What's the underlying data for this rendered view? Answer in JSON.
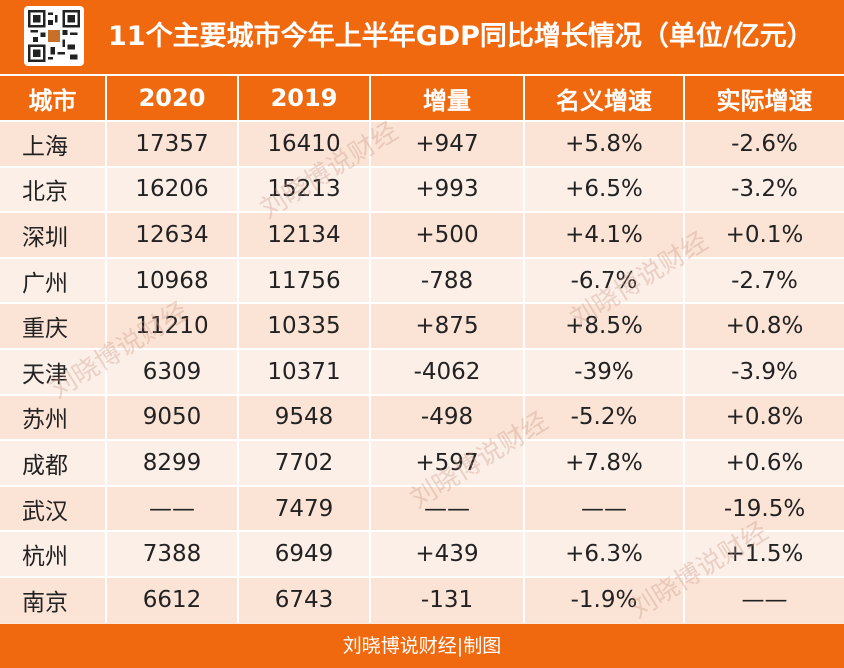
{
  "title": "11个主要城市今年上半年GDP同比增长情况（单位/亿元）",
  "footer": "刘晓博说财经|制图",
  "watermark": "刘晓博说财经",
  "colors": {
    "header": "#f0690f",
    "row_odd": "#fbe4d6",
    "row_even": "#fcefe8"
  },
  "chart_data": {
    "type": "table",
    "title": "11个主要城市今年上半年GDP同比增长情况（单位/亿元）",
    "columns": [
      "城市",
      "2020",
      "2019",
      "增量",
      "名义增速",
      "实际增速"
    ],
    "rows": [
      [
        "上海",
        "17357",
        "16410",
        "+947",
        "+5.8%",
        "-2.6%"
      ],
      [
        "北京",
        "16206",
        "15213",
        "+993",
        "+6.5%",
        "-3.2%"
      ],
      [
        "深圳",
        "12634",
        "12134",
        "+500",
        "+4.1%",
        "+0.1%"
      ],
      [
        "广州",
        "10968",
        "11756",
        "-788",
        "-6.7%",
        "-2.7%"
      ],
      [
        "重庆",
        "11210",
        "10335",
        "+875",
        "+8.5%",
        "+0.8%"
      ],
      [
        "天津",
        "6309",
        "10371",
        "-4062",
        "-39%",
        "-3.9%"
      ],
      [
        "苏州",
        "9050",
        "9548",
        "-498",
        "-5.2%",
        "+0.8%"
      ],
      [
        "成都",
        "8299",
        "7702",
        "+597",
        "+7.8%",
        "+0.6%"
      ],
      [
        "武汉",
        "——",
        "7479",
        "——",
        "——",
        "-19.5%"
      ],
      [
        "杭州",
        "7388",
        "6949",
        "+439",
        "+6.3%",
        "+1.5%"
      ],
      [
        "南京",
        "6612",
        "6743",
        "-131",
        "-1.9%",
        "——"
      ]
    ]
  }
}
